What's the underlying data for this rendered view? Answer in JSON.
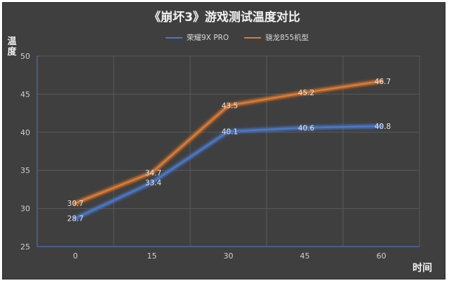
{
  "chart_data": {
    "type": "line",
    "title": "《崩坏3》游戏测试温度对比",
    "xlabel": "时间",
    "ylabel": "温度",
    "x": [
      0,
      15,
      30,
      45,
      60
    ],
    "ylim": [
      25,
      50
    ],
    "yticks": [
      25,
      30,
      35,
      40,
      45,
      50
    ],
    "grid": true,
    "legend_position": "top",
    "series": [
      {
        "name": "荣耀9X PRO",
        "color": "#4a78c8",
        "values": [
          28.7,
          33.4,
          40.1,
          40.6,
          40.8
        ],
        "labels": [
          "28.7",
          "33.4",
          "40.1",
          "40.6",
          "40.8"
        ]
      },
      {
        "name": "骁龙855机型",
        "color": "#e07a2e",
        "values": [
          30.7,
          34.7,
          43.5,
          45.2,
          46.7
        ],
        "labels": [
          "30.7",
          "34.7",
          "43.5",
          "45.2",
          "46.7"
        ]
      }
    ]
  }
}
